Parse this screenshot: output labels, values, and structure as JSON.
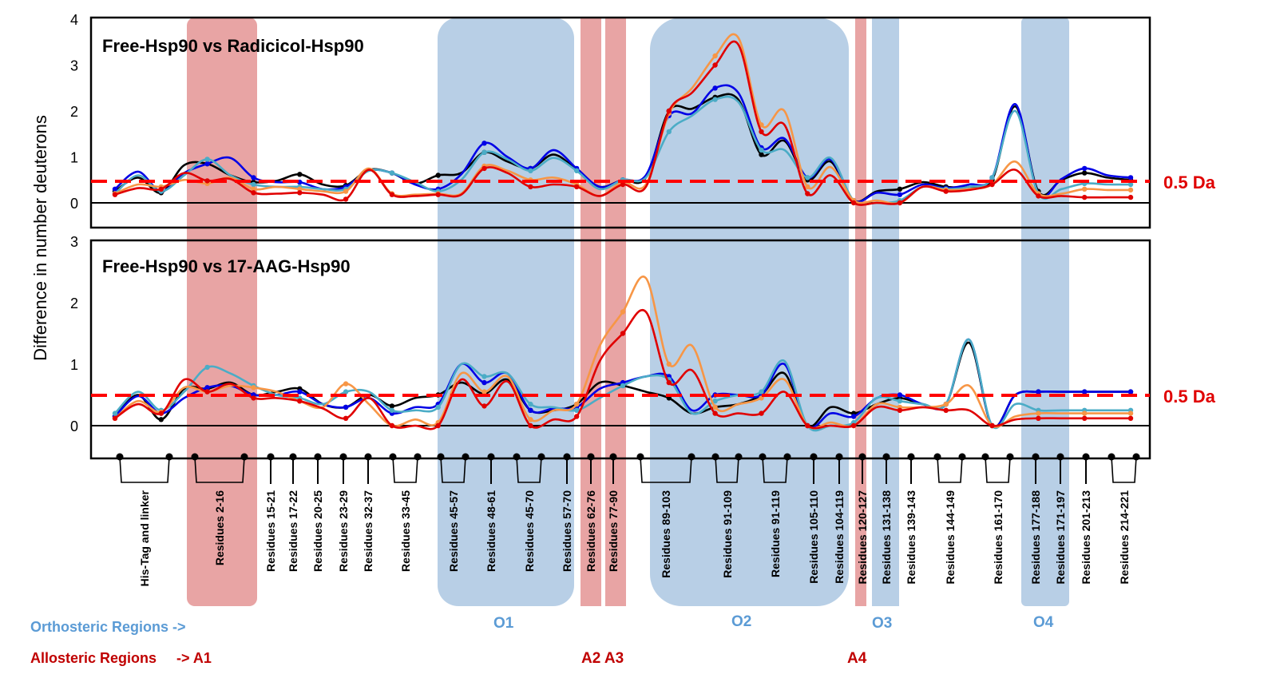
{
  "y_axis_label": "Difference in number deuterons",
  "threshold": {
    "value": 0.5,
    "label": "0.5 Da",
    "color": "#ff0000"
  },
  "series_colors": {
    "black": "#000000",
    "blue": "#0000e6",
    "cyan": "#4bacc6",
    "orange": "#f79646",
    "red": "#e00000"
  },
  "region_colors": {
    "orthosteric": "#b8cfe6",
    "allosteric": "#e8a4a4",
    "orthosteric_text": "#5b9bd5",
    "allosteric_text": "#c00000"
  },
  "categories": [
    "His-Tag and linker",
    "Residues  2-16",
    "Residues  15-21",
    "Residues  17-22",
    "Residues  20-25",
    "Residues  23-29",
    "Residues  32-37",
    "Residues  33-45",
    "Residues  45-57",
    "Residues  48-61",
    "Residues  45-70",
    "Residues  57-70",
    "Residues  62-76",
    "Residues  77-90",
    "Residues  89-103",
    "Residues  91-109",
    "Residues  91-119",
    "Residues  105-110",
    "Residues  104-119",
    "Residues  120-127",
    "Residues  131-138",
    "Residues  139-143",
    "Residues  144-149",
    "Residues  161-170",
    "Residues  177-188",
    "Residues  171-197",
    "Residues  201-213",
    "Residues  214-221"
  ],
  "legend": {
    "orthosteric_label": "Orthosteric Regions ->",
    "allosteric_label": "Allosteric Regions     -> A1"
  },
  "region_labels": {
    "O1": "O1",
    "O2": "O2",
    "O3": "O3",
    "O4": "O4",
    "A2A3": "A2 A3",
    "A4": "A4"
  },
  "chart_data": [
    {
      "type": "line",
      "title": "Free-Hsp90 vs Radicicol-Hsp90",
      "ylabel": "Difference in number deuterons",
      "ylim": [
        -0.5,
        4
      ],
      "yticks": [
        0,
        1,
        2,
        3,
        4
      ],
      "x": [
        0,
        1,
        2,
        3,
        4,
        5,
        6,
        7,
        8,
        9,
        10,
        11,
        12,
        13,
        14,
        15,
        16,
        17,
        18,
        19,
        20,
        21,
        22,
        23,
        24,
        25,
        26,
        27,
        28,
        29,
        30,
        31,
        32,
        33,
        34,
        35,
        36,
        37,
        38,
        39,
        40,
        41,
        42,
        43,
        44
      ],
      "series": [
        {
          "name": "black",
          "values": [
            0.25,
            0.55,
            0.22,
            0.82,
            0.85,
            0.6,
            0.45,
            0.48,
            0.62,
            0.4,
            0.38,
            0.72,
            0.65,
            0.42,
            0.6,
            0.65,
            1.1,
            0.9,
            0.75,
            1.05,
            0.72,
            0.35,
            0.5,
            0.55,
            2.0,
            2.05,
            2.3,
            2.25,
            1.05,
            1.35,
            0.5,
            0.9,
            0.05,
            0.25,
            0.3,
            0.45,
            0.35,
            0.35,
            0.5,
            2.1,
            0.25,
            0.5,
            0.65,
            0.55,
            0.5
          ]
        },
        {
          "name": "blue",
          "values": [
            0.3,
            0.68,
            0.25,
            0.65,
            0.85,
            0.98,
            0.55,
            0.45,
            0.45,
            0.3,
            0.35,
            0.7,
            0.65,
            0.4,
            0.3,
            0.62,
            1.3,
            1.0,
            0.75,
            1.15,
            0.75,
            0.35,
            0.5,
            0.6,
            1.9,
            1.95,
            2.5,
            2.4,
            1.2,
            1.4,
            0.55,
            0.95,
            0.05,
            0.22,
            0.18,
            0.4,
            0.32,
            0.4,
            0.55,
            2.15,
            0.2,
            0.52,
            0.75,
            0.6,
            0.55
          ]
        },
        {
          "name": "cyan",
          "values": [
            0.2,
            0.6,
            0.25,
            0.6,
            0.95,
            0.6,
            0.4,
            0.35,
            0.35,
            0.3,
            0.3,
            0.7,
            0.65,
            0.45,
            0.25,
            0.5,
            1.1,
            0.95,
            0.7,
            0.98,
            0.7,
            0.3,
            0.5,
            0.55,
            1.55,
            1.9,
            2.25,
            2.2,
            1.15,
            1.15,
            0.55,
            0.98,
            0.05,
            0.0,
            0.05,
            0.35,
            0.3,
            0.35,
            0.55,
            2.0,
            0.2,
            0.3,
            0.42,
            0.4,
            0.4
          ]
        },
        {
          "name": "orange",
          "values": [
            0.2,
            0.4,
            0.35,
            0.5,
            0.42,
            0.55,
            0.3,
            0.35,
            0.3,
            0.25,
            0.25,
            0.75,
            0.2,
            0.18,
            0.2,
            0.2,
            0.8,
            0.7,
            0.5,
            0.55,
            0.4,
            0.15,
            0.45,
            0.4,
            1.95,
            2.5,
            3.2,
            3.6,
            1.7,
            2.0,
            0.35,
            0.78,
            0.05,
            0.05,
            0.0,
            0.35,
            0.28,
            0.3,
            0.4,
            0.9,
            0.2,
            0.2,
            0.3,
            0.28,
            0.28
          ]
        },
        {
          "name": "red",
          "values": [
            0.18,
            0.32,
            0.3,
            0.65,
            0.48,
            0.52,
            0.22,
            0.2,
            0.22,
            0.18,
            0.08,
            0.72,
            0.18,
            0.15,
            0.18,
            0.18,
            0.75,
            0.65,
            0.35,
            0.4,
            0.35,
            0.15,
            0.4,
            0.35,
            2.0,
            2.4,
            3.0,
            3.45,
            1.55,
            1.7,
            0.2,
            0.6,
            0.0,
            0.0,
            0.0,
            0.35,
            0.25,
            0.28,
            0.4,
            0.72,
            0.15,
            0.15,
            0.12,
            0.12,
            0.12
          ]
        }
      ]
    },
    {
      "type": "line",
      "title": "Free-Hsp90 vs 17-AAG-Hsp90",
      "ylabel": "Difference in number deuterons",
      "ylim": [
        -0.5,
        3
      ],
      "yticks": [
        0,
        1,
        2,
        3
      ],
      "x": [
        0,
        1,
        2,
        3,
        4,
        5,
        6,
        7,
        8,
        9,
        10,
        11,
        12,
        13,
        14,
        15,
        16,
        17,
        18,
        19,
        20,
        21,
        22,
        23,
        24,
        25,
        26,
        27,
        28,
        29,
        30,
        31,
        32,
        33,
        34,
        35,
        36,
        37,
        38,
        39,
        40,
        41,
        42,
        43,
        44
      ],
      "series": [
        {
          "name": "black",
          "values": [
            0.15,
            0.5,
            0.1,
            0.6,
            0.6,
            0.7,
            0.5,
            0.55,
            0.6,
            0.35,
            0.3,
            0.5,
            0.32,
            0.45,
            0.5,
            0.7,
            0.52,
            0.75,
            0.25,
            0.25,
            0.35,
            0.7,
            0.65,
            0.55,
            0.45,
            0.2,
            0.3,
            0.35,
            0.5,
            0.85,
            0.0,
            0.3,
            0.2,
            0.35,
            0.45,
            0.35,
            0.35,
            1.35,
            0.0,
            0.5,
            0.55,
            0.55,
            0.55,
            0.55,
            0.55
          ]
        },
        {
          "name": "blue",
          "values": [
            0.15,
            0.48,
            0.2,
            0.45,
            0.62,
            0.65,
            0.5,
            0.5,
            0.55,
            0.35,
            0.3,
            0.45,
            0.2,
            0.3,
            0.35,
            1.0,
            0.7,
            0.85,
            0.25,
            0.28,
            0.3,
            0.6,
            0.7,
            0.8,
            0.8,
            0.25,
            0.5,
            0.5,
            0.5,
            1.0,
            0.0,
            0.2,
            0.15,
            0.45,
            0.5,
            0.35,
            0.35,
            1.4,
            0.0,
            0.5,
            0.55,
            0.55,
            0.55,
            0.55,
            0.55
          ]
        },
        {
          "name": "cyan",
          "values": [
            0.2,
            0.55,
            0.25,
            0.55,
            0.95,
            0.85,
            0.65,
            0.5,
            0.45,
            0.35,
            0.55,
            0.55,
            0.25,
            0.25,
            0.3,
            1.0,
            0.8,
            0.85,
            0.35,
            0.3,
            0.25,
            0.45,
            0.65,
            0.8,
            0.75,
            0.2,
            0.4,
            0.5,
            0.55,
            1.05,
            0.0,
            0.0,
            0.05,
            0.45,
            0.4,
            0.35,
            0.35,
            1.4,
            0.0,
            0.35,
            0.25,
            0.25,
            0.25,
            0.25,
            0.25
          ]
        },
        {
          "name": "orange",
          "values": [
            0.12,
            0.4,
            0.22,
            0.62,
            0.55,
            0.65,
            0.62,
            0.55,
            0.4,
            0.3,
            0.68,
            0.35,
            0.0,
            0.1,
            0.05,
            0.85,
            0.55,
            0.8,
            0.1,
            0.25,
            0.35,
            1.3,
            1.85,
            2.4,
            1.0,
            1.3,
            0.3,
            0.35,
            0.45,
            0.75,
            0.0,
            0.05,
            0.0,
            0.35,
            0.3,
            0.3,
            0.35,
            0.65,
            0.0,
            0.15,
            0.2,
            0.2,
            0.2,
            0.2,
            0.2
          ]
        },
        {
          "name": "red",
          "values": [
            0.12,
            0.35,
            0.2,
            0.75,
            0.55,
            0.68,
            0.45,
            0.45,
            0.4,
            0.28,
            0.12,
            0.45,
            0.0,
            0.0,
            0.0,
            0.75,
            0.32,
            0.72,
            0.0,
            0.1,
            0.15,
            1.05,
            1.5,
            1.85,
            0.7,
            0.9,
            0.2,
            0.2,
            0.2,
            0.55,
            0.0,
            0.0,
            0.0,
            0.3,
            0.25,
            0.3,
            0.25,
            0.25,
            0.0,
            0.1,
            0.12,
            0.12,
            0.12,
            0.12,
            0.12
          ]
        }
      ]
    }
  ]
}
